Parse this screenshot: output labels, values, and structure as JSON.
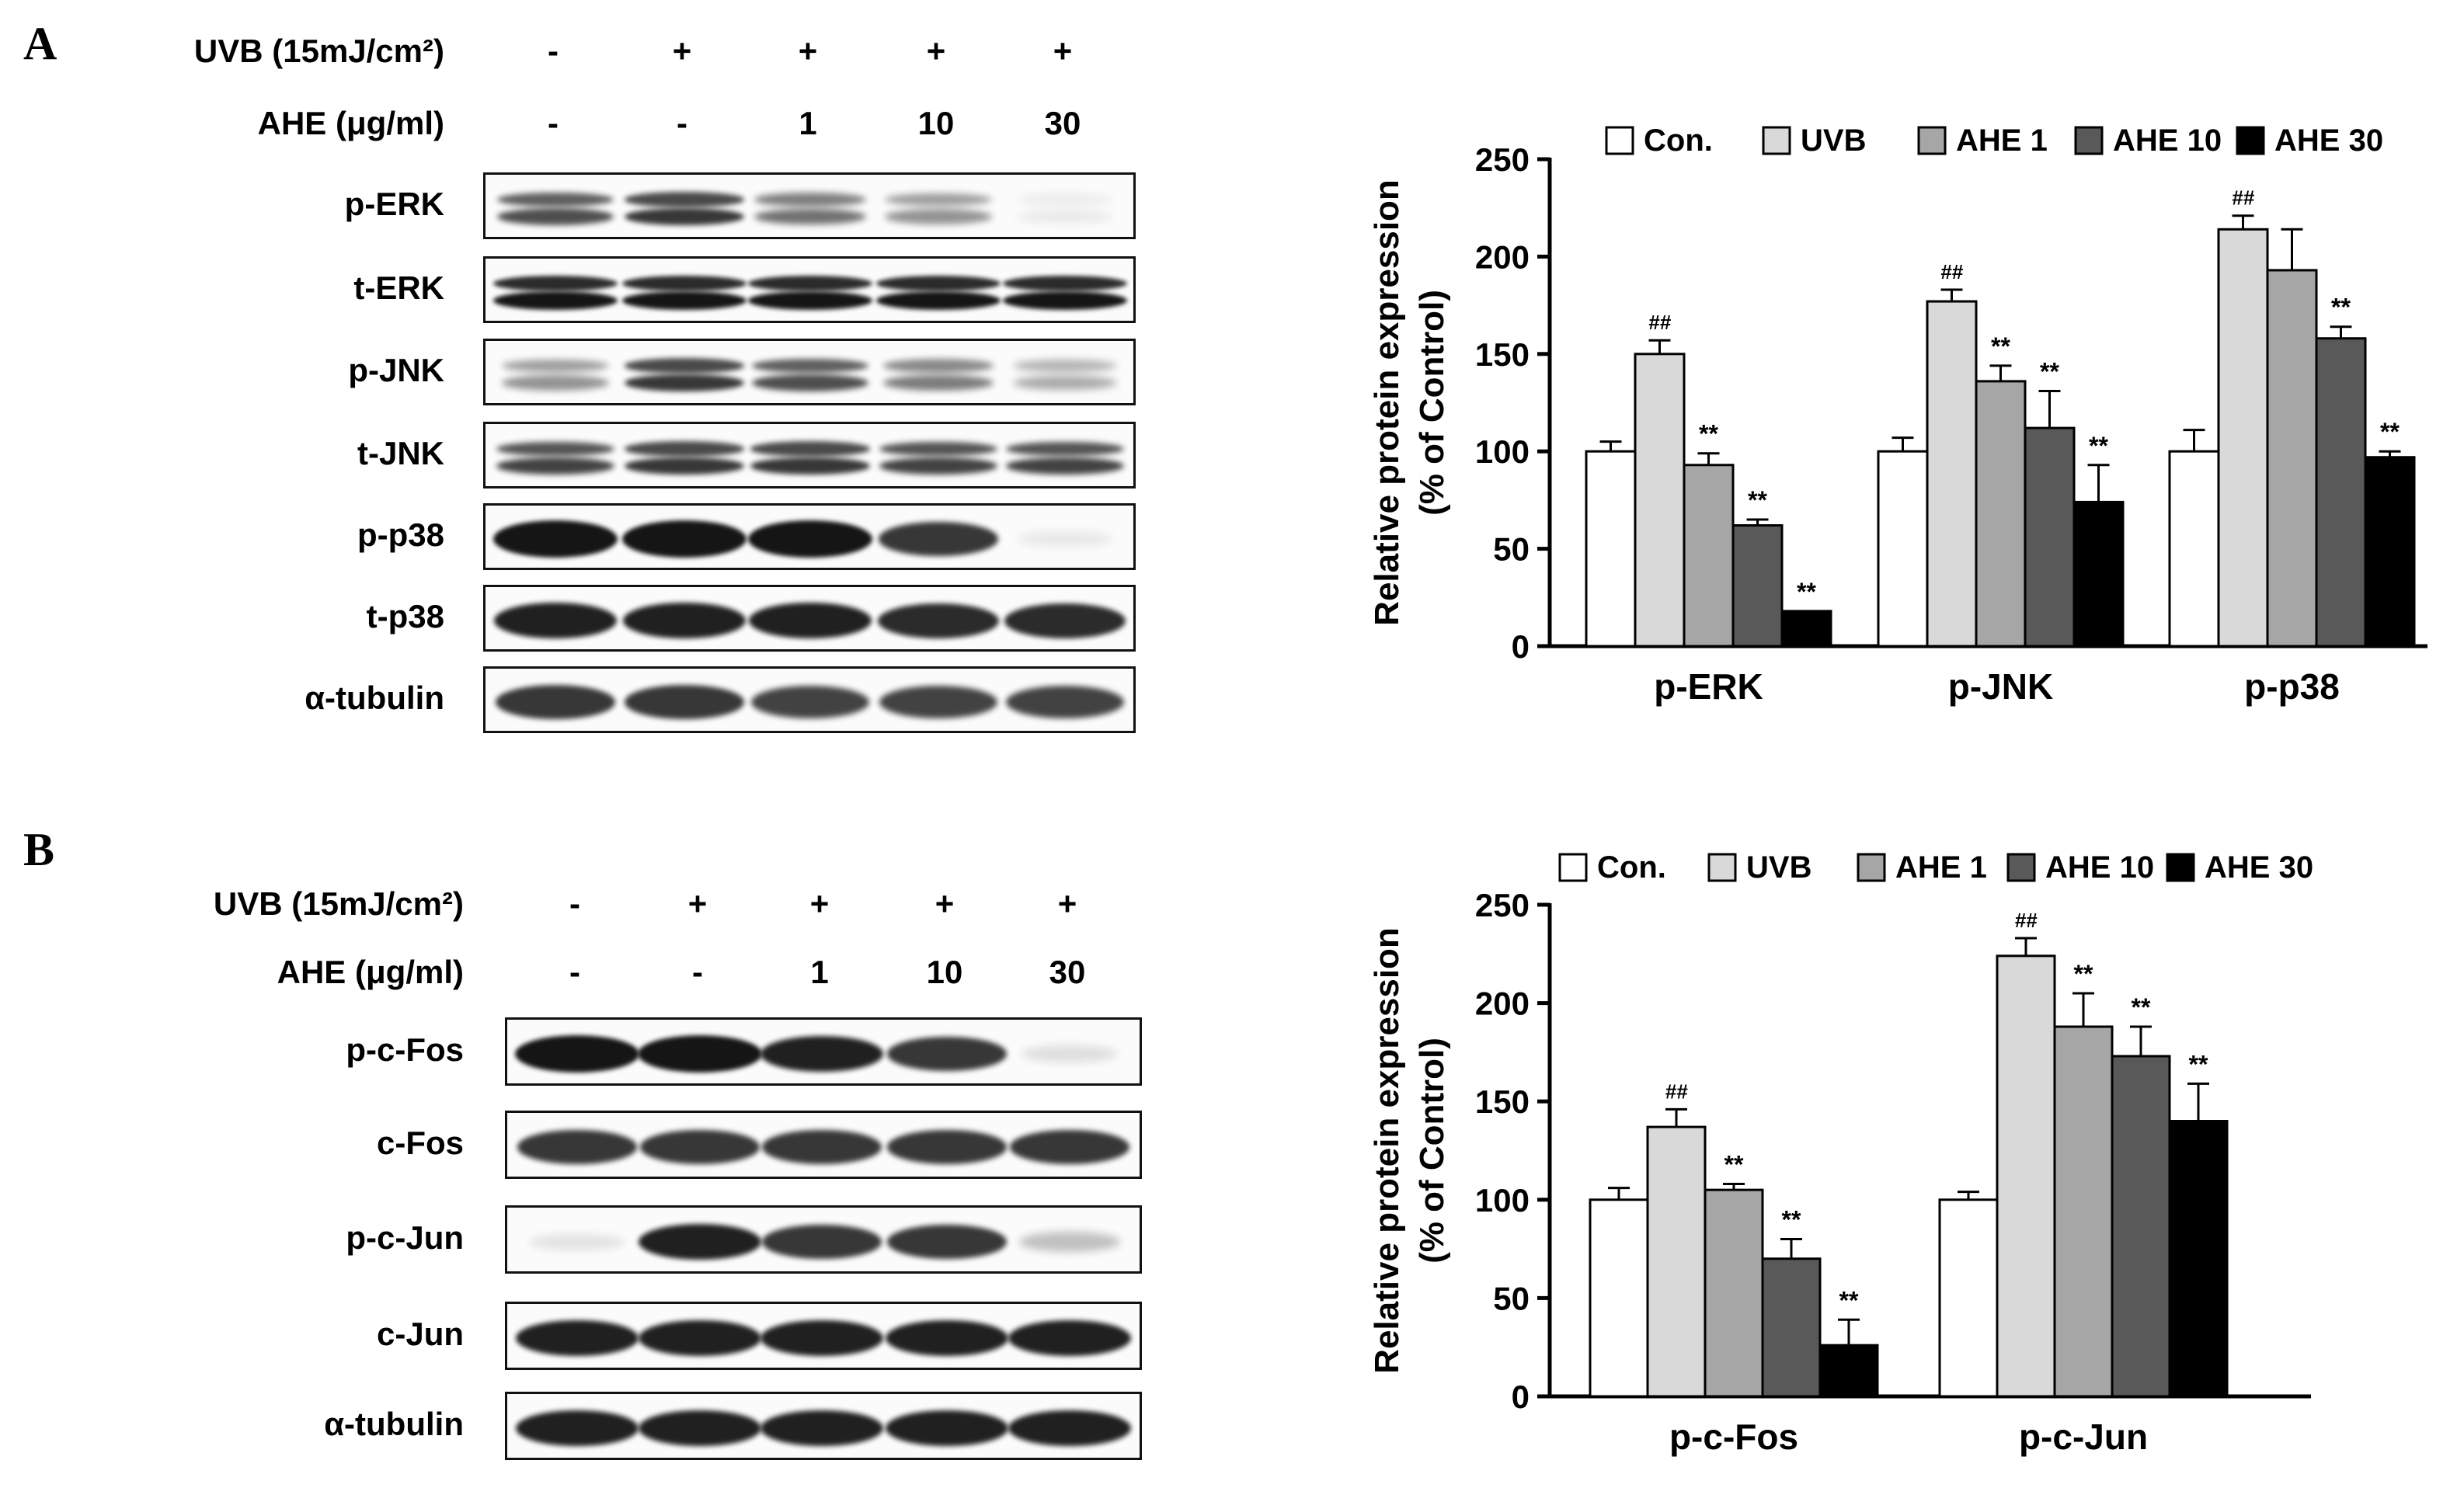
{
  "panels": [
    {
      "letter": "A",
      "treatments": [
        {
          "label": "UVB (15mJ/cm²)",
          "values": [
            "-",
            "+",
            "+",
            "+",
            "+"
          ]
        },
        {
          "label": "AHE (μg/ml)",
          "values": [
            "-",
            "-",
            "1",
            "10",
            "30"
          ]
        }
      ],
      "blots": [
        {
          "label": "p-ERK",
          "intensity": [
            0.75,
            0.85,
            0.6,
            0.45,
            0.08
          ],
          "double": true
        },
        {
          "label": "t-ERK",
          "intensity": [
            1,
            1,
            1,
            1,
            1
          ],
          "double": true
        },
        {
          "label": "p-JNK",
          "intensity": [
            0.45,
            0.85,
            0.75,
            0.55,
            0.35
          ],
          "double": true
        },
        {
          "label": "t-JNK",
          "intensity": [
            0.8,
            0.85,
            0.85,
            0.8,
            0.8
          ],
          "double": true
        },
        {
          "label": "p-p38",
          "intensity": [
            1,
            1,
            1,
            0.85,
            0.08
          ],
          "double": false
        },
        {
          "label": "t-p38",
          "intensity": [
            0.95,
            0.95,
            0.95,
            0.9,
            0.9
          ],
          "double": false
        },
        {
          "label": "α-tubulin",
          "intensity": [
            0.85,
            0.85,
            0.8,
            0.8,
            0.8
          ],
          "double": false
        }
      ]
    },
    {
      "letter": "B",
      "treatments": [
        {
          "label": "UVB (15mJ/cm²)",
          "values": [
            "-",
            "+",
            "+",
            "+",
            "+"
          ]
        },
        {
          "label": "AHE (μg/ml)",
          "values": [
            "-",
            "-",
            "1",
            "10",
            "30"
          ]
        }
      ],
      "blots": [
        {
          "label": "p-c-Fos",
          "intensity": [
            1,
            1,
            0.95,
            0.85,
            0.12
          ],
          "double": false
        },
        {
          "label": "c-Fos",
          "intensity": [
            0.85,
            0.85,
            0.85,
            0.85,
            0.85
          ],
          "double": false
        },
        {
          "label": "p-c-Jun",
          "intensity": [
            0.1,
            0.95,
            0.85,
            0.85,
            0.25
          ],
          "double": false
        },
        {
          "label": "c-Jun",
          "intensity": [
            0.95,
            0.95,
            0.95,
            0.95,
            0.95
          ],
          "double": false
        },
        {
          "label": "α-tubulin",
          "intensity": [
            0.95,
            0.95,
            0.95,
            0.95,
            0.95
          ],
          "double": false
        }
      ]
    }
  ],
  "chart_data": [
    {
      "type": "bar",
      "panel": "A",
      "ylabel_line1": "Relative protein expression",
      "ylabel_line2": "(% of Control)",
      "ylim": [
        0,
        250
      ],
      "yticks": [
        "0",
        "50",
        "100",
        "150",
        "200",
        "250"
      ],
      "categories": [
        "p-ERK",
        "p-JNK",
        "p-p38"
      ],
      "legend_position": "top",
      "series": [
        {
          "name": "Con.",
          "color": "#ffffff",
          "values": [
            100,
            100,
            100
          ],
          "errors": [
            5,
            7,
            11
          ],
          "marks": [
            "",
            "",
            ""
          ]
        },
        {
          "name": "UVB",
          "color": "#d9d9d9",
          "values": [
            150,
            177,
            214
          ],
          "errors": [
            7,
            6,
            7
          ],
          "marks": [
            "##",
            "##",
            "##"
          ]
        },
        {
          "name": "AHE 1",
          "color": "#a6a6a6",
          "values": [
            93,
            136,
            193
          ],
          "errors": [
            6,
            8,
            21
          ],
          "marks": [
            "**",
            "**",
            ""
          ]
        },
        {
          "name": "AHE 10",
          "color": "#595959",
          "values": [
            62,
            112,
            158
          ],
          "errors": [
            3,
            19,
            6
          ],
          "marks": [
            "**",
            "**",
            "**"
          ]
        },
        {
          "name": "AHE 30",
          "color": "#000000",
          "values": [
            18,
            74,
            97
          ],
          "errors": [
            0,
            19,
            3
          ],
          "marks": [
            "**",
            "**",
            "**"
          ]
        }
      ]
    },
    {
      "type": "bar",
      "panel": "B",
      "ylabel_line1": "Relative protein expression",
      "ylabel_line2": "(% of Control)",
      "ylim": [
        0,
        250
      ],
      "yticks": [
        "0",
        "50",
        "100",
        "150",
        "200",
        "250"
      ],
      "categories": [
        "p-c-Fos",
        "p-c-Jun"
      ],
      "legend_position": "top",
      "series": [
        {
          "name": "Con.",
          "color": "#ffffff",
          "values": [
            100,
            100
          ],
          "errors": [
            6,
            4
          ],
          "marks": [
            "",
            ""
          ]
        },
        {
          "name": "UVB",
          "color": "#d9d9d9",
          "values": [
            137,
            224
          ],
          "errors": [
            9,
            9
          ],
          "marks": [
            "##",
            "##"
          ]
        },
        {
          "name": "AHE 1",
          "color": "#a6a6a6",
          "values": [
            105,
            188
          ],
          "errors": [
            3,
            17
          ],
          "marks": [
            "**",
            "**"
          ]
        },
        {
          "name": "AHE 10",
          "color": "#595959",
          "values": [
            70,
            173
          ],
          "errors": [
            10,
            15
          ],
          "marks": [
            "**",
            "**"
          ]
        },
        {
          "name": "AHE 30",
          "color": "#000000",
          "values": [
            26,
            140
          ],
          "errors": [
            13,
            19
          ],
          "marks": [
            "**",
            "**"
          ]
        }
      ]
    }
  ]
}
